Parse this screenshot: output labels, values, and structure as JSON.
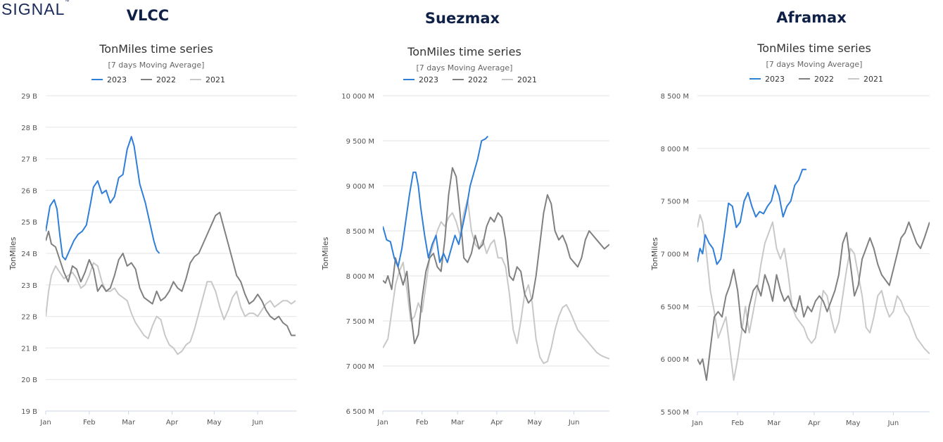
{
  "brand": {
    "logo_text": "SIGNAL",
    "logo_mark": "™"
  },
  "chart_data": [
    {
      "vessel": "VLCC",
      "type": "line",
      "title": "TonMiles time series",
      "subtitle": "[7 days Moving Average]",
      "ylabel": "TonMiles",
      "ylim": [
        19,
        29
      ],
      "yticks": [
        19,
        20,
        21,
        22,
        23,
        24,
        25,
        26,
        27,
        28,
        29
      ],
      "ytick_labels": [
        "19 B",
        "20 B",
        "21 B",
        "22 B",
        "23 B",
        "24 B",
        "25 B",
        "26 B",
        "27 B",
        "28 B",
        "29 B"
      ],
      "xlim": [
        1,
        180
      ],
      "xticks": [
        1,
        32,
        60,
        91,
        121,
        152
      ],
      "xtick_labels": [
        "Jan",
        "Feb",
        "Mar",
        "Apr",
        "May",
        "Jun"
      ],
      "legend_position": "top-center",
      "series": [
        {
          "name": "2023",
          "color": "#2f7ed8",
          "x": [
            1,
            4,
            7,
            9,
            11,
            13,
            15,
            18,
            21,
            24,
            27,
            30,
            33,
            35,
            38,
            41,
            44,
            47,
            50,
            53,
            56,
            59,
            62,
            64,
            66,
            68,
            70,
            72,
            75,
            78,
            80,
            82
          ],
          "y": [
            24.7,
            25.5,
            25.7,
            25.4,
            24.6,
            23.9,
            23.8,
            24.1,
            24.4,
            24.6,
            24.7,
            24.9,
            25.6,
            26.1,
            26.3,
            25.9,
            26.0,
            25.6,
            25.8,
            26.4,
            26.5,
            27.3,
            27.7,
            27.4,
            26.8,
            26.2,
            25.9,
            25.6,
            25.0,
            24.4,
            24.1,
            24.0
          ]
        },
        {
          "name": "2022",
          "color": "#808080",
          "x": [
            1,
            3,
            5,
            8,
            11,
            14,
            17,
            20,
            23,
            26,
            29,
            32,
            35,
            38,
            41,
            44,
            47,
            50,
            53,
            56,
            59,
            62,
            65,
            68,
            71,
            74,
            77,
            80,
            83,
            86,
            89,
            92,
            95,
            98,
            101,
            104,
            107,
            110,
            113,
            116,
            119,
            122,
            125,
            128,
            131,
            134,
            137,
            140,
            143,
            146,
            149,
            152,
            155,
            158,
            161,
            164,
            167,
            170,
            173,
            176,
            179
          ],
          "y": [
            24.4,
            24.7,
            24.3,
            24.2,
            23.8,
            23.4,
            23.1,
            23.6,
            23.5,
            23.1,
            23.4,
            23.8,
            23.5,
            22.8,
            23.0,
            22.8,
            22.9,
            23.3,
            23.8,
            24.0,
            23.6,
            23.7,
            23.5,
            22.9,
            22.6,
            22.5,
            22.4,
            22.8,
            22.5,
            22.6,
            22.8,
            23.1,
            22.9,
            22.8,
            23.2,
            23.7,
            23.9,
            24.0,
            24.3,
            24.6,
            24.9,
            25.2,
            25.3,
            24.8,
            24.3,
            23.8,
            23.3,
            23.1,
            22.7,
            22.4,
            22.5,
            22.7,
            22.5,
            22.2,
            22.0,
            21.9,
            22.0,
            21.8,
            21.7,
            21.4,
            21.4
          ]
        },
        {
          "name": "2021",
          "color": "#c8c8c8",
          "x": [
            1,
            3,
            5,
            8,
            11,
            14,
            17,
            20,
            23,
            26,
            29,
            32,
            35,
            38,
            41,
            44,
            47,
            50,
            53,
            56,
            59,
            62,
            65,
            68,
            71,
            74,
            77,
            80,
            83,
            86,
            89,
            92,
            95,
            98,
            101,
            104,
            107,
            110,
            113,
            116,
            119,
            122,
            125,
            128,
            131,
            134,
            137,
            140,
            143,
            146,
            149,
            152,
            155,
            158,
            161,
            164,
            167,
            170,
            173,
            176,
            179
          ],
          "y": [
            22.0,
            22.8,
            23.3,
            23.6,
            23.4,
            23.2,
            23.3,
            23.4,
            23.2,
            22.9,
            23.0,
            23.3,
            23.7,
            23.6,
            23.1,
            22.8,
            22.8,
            22.9,
            22.7,
            22.6,
            22.5,
            22.1,
            21.8,
            21.6,
            21.4,
            21.3,
            21.7,
            22.0,
            21.9,
            21.4,
            21.1,
            21.0,
            20.8,
            20.9,
            21.1,
            21.2,
            21.6,
            22.1,
            22.6,
            23.1,
            23.1,
            22.8,
            22.3,
            21.9,
            22.2,
            22.6,
            22.8,
            22.3,
            22.0,
            22.1,
            22.1,
            22.0,
            22.2,
            22.4,
            22.5,
            22.3,
            22.4,
            22.5,
            22.5,
            22.4,
            22.5
          ]
        }
      ]
    },
    {
      "vessel": "Suezmax",
      "type": "line",
      "title": "TonMiles time series",
      "subtitle": "[7 days Moving Average]",
      "ylabel": "TonMiles",
      "ylim": [
        6500,
        10000
      ],
      "yticks": [
        6500,
        7000,
        7500,
        8000,
        8500,
        9000,
        9500,
        10000
      ],
      "ytick_labels": [
        "6 500 M",
        "7 000 M",
        "7 500 M",
        "8 000 M",
        "8 500 M",
        "9 000 M",
        "9 500 M",
        "10 000 M"
      ],
      "xlim": [
        1,
        180
      ],
      "xticks": [
        1,
        32,
        60,
        91,
        121,
        152
      ],
      "xtick_labels": [
        "Jan",
        "Feb",
        "Mar",
        "Apr",
        "May",
        "Jun"
      ],
      "legend_position": "top-center",
      "series": [
        {
          "name": "2023",
          "color": "#2f7ed8",
          "x": [
            1,
            4,
            7,
            10,
            13,
            16,
            19,
            22,
            25,
            27,
            29,
            31,
            34,
            37,
            40,
            43,
            46,
            49,
            52,
            55,
            58,
            61,
            64,
            67,
            70,
            73,
            76,
            79,
            82,
            84
          ],
          "y": [
            8550,
            8400,
            8380,
            8200,
            8100,
            8300,
            8600,
            8900,
            9150,
            9150,
            9000,
            8750,
            8450,
            8200,
            8350,
            8450,
            8150,
            8250,
            8150,
            8300,
            8450,
            8350,
            8550,
            8750,
            9000,
            9150,
            9300,
            9500,
            9520,
            9550
          ]
        },
        {
          "name": "2022",
          "color": "#808080",
          "x": [
            1,
            3,
            5,
            8,
            11,
            14,
            17,
            20,
            23,
            26,
            29,
            32,
            35,
            38,
            41,
            44,
            47,
            50,
            53,
            56,
            59,
            62,
            65,
            68,
            71,
            74,
            77,
            80,
            83,
            86,
            89,
            92,
            95,
            98,
            101,
            104,
            107,
            110,
            113,
            116,
            119,
            122,
            125,
            128,
            131,
            134,
            137,
            140,
            143,
            146,
            149,
            152,
            155,
            158,
            161,
            164,
            167,
            170,
            173,
            176,
            180
          ],
          "y": [
            7950,
            7920,
            8000,
            7850,
            8200,
            8050,
            7900,
            8050,
            7600,
            7250,
            7350,
            7750,
            8050,
            8200,
            8250,
            8100,
            8050,
            8400,
            8900,
            9200,
            9100,
            8700,
            8200,
            8150,
            8250,
            8450,
            8300,
            8350,
            8550,
            8650,
            8600,
            8700,
            8650,
            8400,
            8000,
            7950,
            8100,
            8050,
            7800,
            7700,
            7750,
            8000,
            8350,
            8700,
            8900,
            8800,
            8500,
            8400,
            8450,
            8350,
            8200,
            8150,
            8100,
            8200,
            8400,
            8500,
            8450,
            8400,
            8350,
            8300,
            8350
          ]
        },
        {
          "name": "2021",
          "color": "#c8c8c8",
          "x": [
            1,
            3,
            5,
            8,
            11,
            14,
            17,
            20,
            23,
            26,
            29,
            32,
            35,
            38,
            41,
            44,
            47,
            50,
            53,
            56,
            59,
            62,
            65,
            68,
            71,
            74,
            77,
            80,
            83,
            86,
            89,
            92,
            95,
            98,
            101,
            104,
            107,
            110,
            113,
            116,
            119,
            122,
            125,
            128,
            131,
            134,
            137,
            140,
            143,
            146,
            149,
            152,
            155,
            158,
            161,
            164,
            167,
            170,
            173,
            176,
            180
          ],
          "y": [
            7200,
            7250,
            7300,
            7600,
            7900,
            8050,
            8150,
            7850,
            7500,
            7550,
            7700,
            7600,
            7900,
            8200,
            8350,
            8500,
            8600,
            8550,
            8650,
            8700,
            8600,
            8450,
            8700,
            8850,
            8500,
            8350,
            8300,
            8400,
            8250,
            8350,
            8400,
            8200,
            8200,
            8100,
            7800,
            7400,
            7250,
            7500,
            7800,
            7900,
            7700,
            7300,
            7100,
            7030,
            7050,
            7200,
            7400,
            7550,
            7650,
            7680,
            7600,
            7500,
            7400,
            7350,
            7300,
            7250,
            7200,
            7150,
            7120,
            7100,
            7080
          ]
        }
      ]
    },
    {
      "vessel": "Aframax",
      "type": "line",
      "title": "TonMiles time series",
      "subtitle": "[7 days Moving Average]",
      "ylabel": "TonMiles",
      "ylim": [
        5500,
        8500
      ],
      "yticks": [
        5500,
        6000,
        6500,
        7000,
        7500,
        8000,
        8500
      ],
      "ytick_labels": [
        "5 500 M",
        "6 000 M",
        "6 500 M",
        "7 000 M",
        "7 500 M",
        "8 000 M",
        "8 500 M"
      ],
      "xlim": [
        1,
        180
      ],
      "xticks": [
        1,
        32,
        60,
        91,
        121,
        152
      ],
      "xtick_labels": [
        "Jan",
        "Feb",
        "Mar",
        "Apr",
        "May",
        "Jun"
      ],
      "legend_position": "top-center",
      "series": [
        {
          "name": "2023",
          "color": "#2f7ed8",
          "x": [
            1,
            3,
            5,
            7,
            10,
            13,
            16,
            19,
            22,
            25,
            28,
            31,
            34,
            37,
            40,
            43,
            46,
            49,
            52,
            55,
            58,
            61,
            64,
            67,
            70,
            73,
            76,
            79,
            82,
            85
          ],
          "y": [
            6920,
            7050,
            7000,
            7180,
            7100,
            7050,
            6900,
            6950,
            7200,
            7480,
            7450,
            7250,
            7300,
            7500,
            7580,
            7450,
            7350,
            7400,
            7380,
            7450,
            7500,
            7650,
            7550,
            7350,
            7450,
            7500,
            7650,
            7700,
            7800,
            7800
          ]
        },
        {
          "name": "2022",
          "color": "#808080",
          "x": [
            1,
            3,
            5,
            8,
            11,
            14,
            17,
            20,
            23,
            26,
            29,
            32,
            35,
            38,
            41,
            44,
            47,
            50,
            53,
            56,
            59,
            62,
            65,
            68,
            71,
            74,
            77,
            80,
            83,
            86,
            89,
            92,
            95,
            98,
            101,
            104,
            107,
            110,
            113,
            116,
            119,
            122,
            125,
            128,
            131,
            134,
            137,
            140,
            143,
            146,
            149,
            152,
            155,
            158,
            161,
            164,
            167,
            170,
            173,
            176,
            180
          ],
          "y": [
            6000,
            5950,
            6000,
            5800,
            6100,
            6400,
            6450,
            6400,
            6600,
            6700,
            6850,
            6650,
            6300,
            6250,
            6500,
            6650,
            6700,
            6600,
            6800,
            6700,
            6550,
            6800,
            6650,
            6550,
            6600,
            6500,
            6450,
            6600,
            6400,
            6500,
            6450,
            6550,
            6600,
            6550,
            6450,
            6550,
            6650,
            6800,
            7100,
            7200,
            6900,
            6600,
            6700,
            6950,
            7050,
            7150,
            7050,
            6900,
            6800,
            6750,
            6700,
            6850,
            7000,
            7150,
            7200,
            7300,
            7200,
            7100,
            7050,
            7150,
            7300
          ]
        },
        {
          "name": "2021",
          "color": "#c8c8c8",
          "x": [
            1,
            3,
            5,
            8,
            11,
            14,
            17,
            20,
            23,
            26,
            29,
            32,
            35,
            38,
            41,
            44,
            47,
            50,
            53,
            56,
            59,
            62,
            65,
            68,
            71,
            74,
            77,
            80,
            83,
            86,
            89,
            92,
            95,
            98,
            101,
            104,
            107,
            110,
            113,
            116,
            119,
            122,
            125,
            128,
            131,
            134,
            137,
            140,
            143,
            146,
            149,
            152,
            155,
            158,
            161,
            164,
            167,
            170,
            173,
            176,
            180
          ],
          "y": [
            7250,
            7370,
            7300,
            7000,
            6650,
            6450,
            6200,
            6300,
            6400,
            6100,
            5800,
            6000,
            6250,
            6500,
            6250,
            6450,
            6650,
            6900,
            7100,
            7200,
            7300,
            7050,
            6950,
            7050,
            6800,
            6500,
            6400,
            6350,
            6300,
            6200,
            6150,
            6200,
            6400,
            6650,
            6600,
            6400,
            6250,
            6350,
            6600,
            6850,
            7050,
            7000,
            6800,
            6600,
            6300,
            6250,
            6400,
            6600,
            6650,
            6500,
            6400,
            6450,
            6600,
            6550,
            6450,
            6400,
            6300,
            6200,
            6150,
            6100,
            6050
          ]
        }
      ]
    }
  ]
}
